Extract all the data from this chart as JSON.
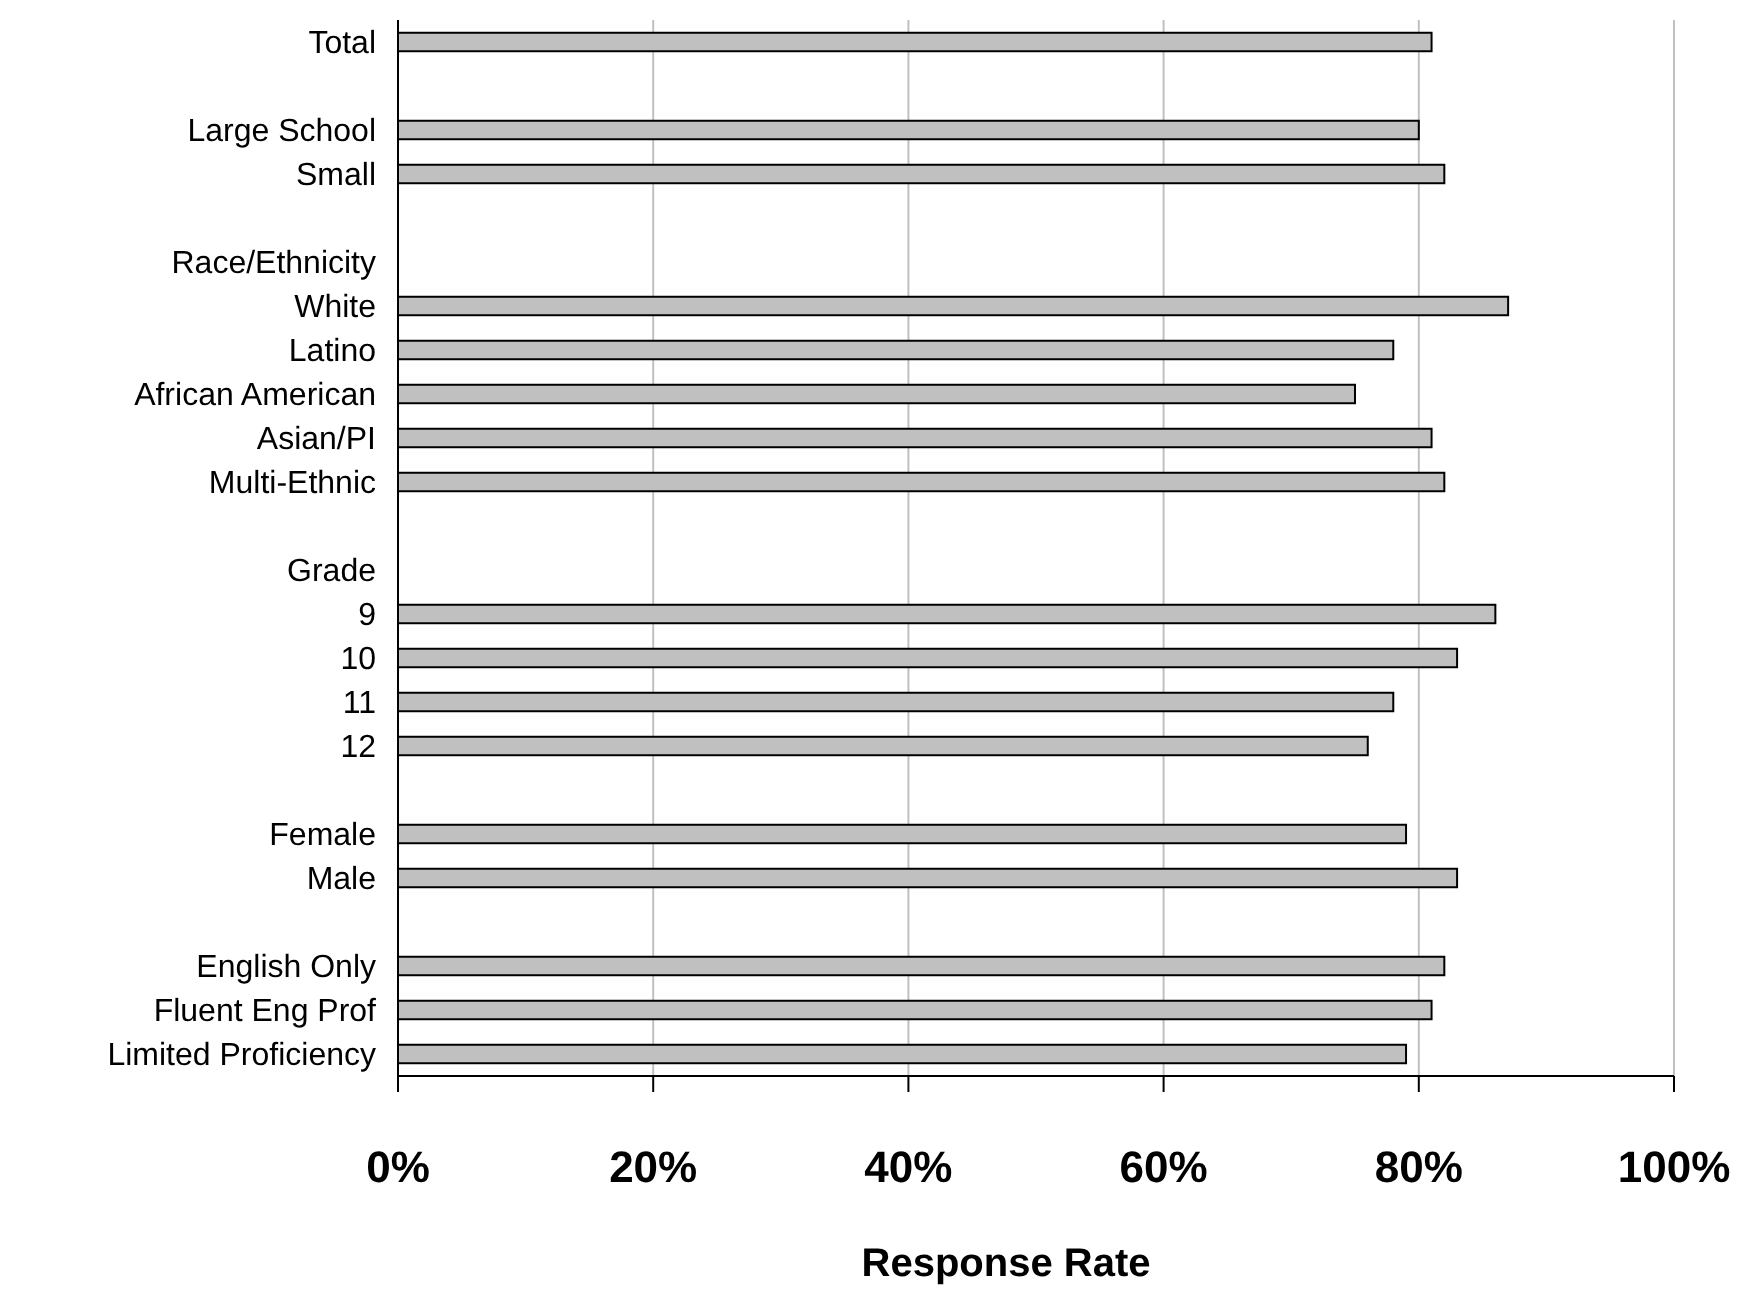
{
  "chart_data": {
    "type": "bar",
    "orientation": "horizontal",
    "xlabel": "Response Rate",
    "categories": [
      "Total",
      null,
      "Large School",
      "Small",
      null,
      "Race/Ethnicity",
      "White",
      "Latino",
      "African American",
      "Asian/PI",
      "Multi-Ethnic",
      null,
      "Grade",
      "9",
      "10",
      "11",
      "12",
      null,
      "Female",
      "Male",
      null,
      "English Only",
      "Fluent Eng Prof",
      "Limited Proficiency"
    ],
    "values": [
      81,
      null,
      80,
      82,
      null,
      null,
      87,
      78,
      75,
      81,
      82,
      null,
      null,
      86,
      83,
      78,
      76,
      null,
      79,
      83,
      null,
      82,
      81,
      79
    ],
    "color": "#c0c0c0",
    "xlim": [
      0,
      100
    ],
    "xticks": [
      {
        "value": 0,
        "label": "0%"
      },
      {
        "value": 20,
        "label": "20%"
      },
      {
        "value": 40,
        "label": "40%"
      },
      {
        "value": 60,
        "label": "60%"
      },
      {
        "value": 80,
        "label": "80%"
      },
      {
        "value": 100,
        "label": "100%"
      }
    ],
    "grid": "x"
  }
}
